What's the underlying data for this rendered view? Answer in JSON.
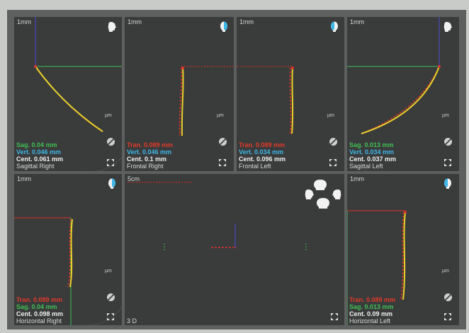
{
  "views": [
    {
      "id": "sagittal-right",
      "scale": "1mm",
      "unit": "µm",
      "m1": "Sag. 0.04 mm",
      "m2": "Vert. 0.046 mm",
      "m3": "Cent. 0.061 mm",
      "name": "Sagittal Right",
      "head_icon": "head-profile-icon"
    },
    {
      "id": "frontal-right",
      "scale": "1mm",
      "unit": "µm",
      "m1": "Tran. 0.089 mm",
      "m2": "Vert. 0.046 mm",
      "m3": "Cent. 0.1 mm",
      "name": "Frontal Right",
      "head_icon": "head-front-icon"
    },
    {
      "id": "frontal-left",
      "scale": "1mm",
      "unit": "µm",
      "m1": "Tran. 0.089 mm",
      "m2": "Vert. 0.034 mm",
      "m3": "Cent. 0.096 mm",
      "name": "Frontal Left",
      "head_icon": "head-front-icon"
    },
    {
      "id": "sagittal-left",
      "scale": "1mm",
      "unit": "µm",
      "m1": "Sag. 0.013 mm",
      "m2": "Vert. 0.034 mm",
      "m3": "Cent. 0.037 mm",
      "name": "Sagittal Left",
      "head_icon": "head-profile-icon"
    },
    {
      "id": "horizontal-right",
      "scale": "1mm",
      "unit": "µm",
      "m1": "Tran. 0.089 mm",
      "m2": "Sag. 0.04 mm",
      "m3": "Cent. 0.098 mm",
      "name": "Horizontal Right",
      "head_icon": "head-front-icon"
    },
    {
      "id": "view-3d",
      "scale": "5cm",
      "name": "3 D",
      "head_icon": "heads-3d-icon"
    },
    {
      "id": "horizontal-left",
      "scale": "1mm",
      "unit": "µm",
      "m1": "Tran. 0.089 mm",
      "m2": "Sag. 0.013 mm",
      "m3": "Cent. 0.09 mm",
      "name": "Horizontal Left",
      "head_icon": "head-front-icon"
    }
  ],
  "colors": {
    "trace_yellow": "#e8d12a",
    "trace_red": "#d9352a",
    "axis_green": "#3fbf55",
    "axis_blue": "#4a4fd0",
    "axis_red": "#d9352a"
  },
  "icons": {
    "hide": "hide-trace-icon",
    "maximize": "maximize-icon"
  }
}
